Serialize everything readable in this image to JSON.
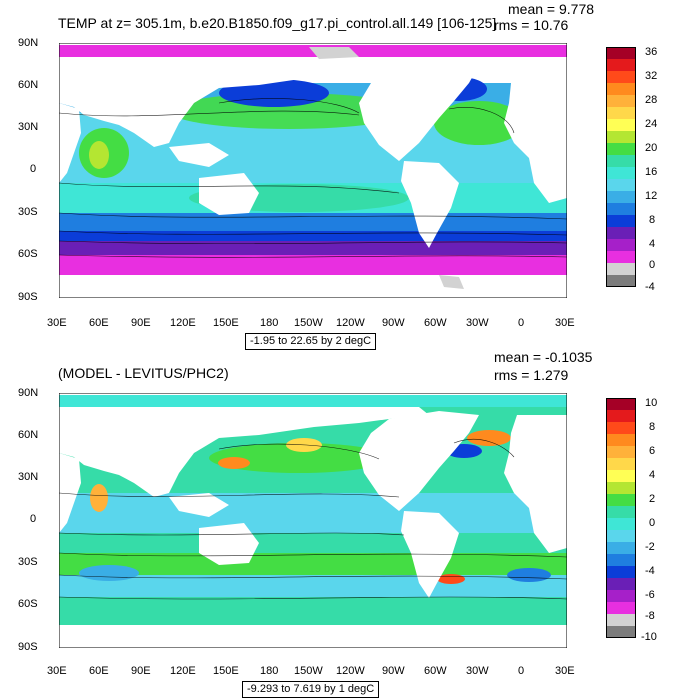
{
  "chart_data": [
    {
      "type": "heatmap",
      "title": "TEMP at z= 305.1m, b.e20.B1850.f09_g17.pi_control.all.149 [106-125]",
      "stats": {
        "mean": "mean = 9.778",
        "rms": "rms = 10.76"
      },
      "note": "-1.95 to 22.65 by 2 degC",
      "x_ticks": [
        "30E",
        "60E",
        "90E",
        "120E",
        "150E",
        "180",
        "150W",
        "120W",
        "90W",
        "60W",
        "30W",
        "0",
        "30E"
      ],
      "y_ticks": [
        "90N",
        "60N",
        "30N",
        "0",
        "30S",
        "60S",
        "90S"
      ],
      "colorbar": {
        "labels": [
          "36",
          "32",
          "28",
          "24",
          "20",
          "16",
          "12",
          "8",
          "4",
          "0",
          "-4"
        ],
        "colors": [
          "#a50026",
          "#e41a1c",
          "#ff4a1a",
          "#ff8a1e",
          "#ffb13a",
          "#ffd84a",
          "#ffff55",
          "#b4e632",
          "#44dd44",
          "#36dca8",
          "#3fe6d6",
          "#5ad6ec",
          "#3aaee6",
          "#1f7ee0",
          "#0b3dd8",
          "#6a1fb6",
          "#a620c9",
          "#e82fe0",
          "#d2d2d2",
          "#7c7c7c"
        ]
      }
    },
    {
      "type": "heatmap",
      "title": "(MODEL - LEVITUS/PHC2)",
      "stats": {
        "mean": "mean = -0.1035",
        "rms": "rms = 1.279"
      },
      "note": "-9.293 to 7.619 by 1 degC",
      "x_ticks": [
        "30E",
        "60E",
        "90E",
        "120E",
        "150E",
        "180",
        "150W",
        "120W",
        "90W",
        "60W",
        "30W",
        "0",
        "30E"
      ],
      "y_ticks": [
        "90N",
        "60N",
        "30N",
        "0",
        "30S",
        "60S",
        "90S"
      ],
      "colorbar": {
        "labels": [
          "10",
          "8",
          "6",
          "4",
          "2",
          "0",
          "-2",
          "-4",
          "-6",
          "-8",
          "-10"
        ],
        "colors": [
          "#a50026",
          "#e41a1c",
          "#ff4a1a",
          "#ff8a1e",
          "#ffb13a",
          "#ffd84a",
          "#ffff55",
          "#b4e632",
          "#44dd44",
          "#36dca8",
          "#3fe6d6",
          "#5ad6ec",
          "#3aaee6",
          "#1f7ee0",
          "#0b3dd8",
          "#6a1fb6",
          "#a620c9",
          "#e82fe0",
          "#d2d2d2",
          "#7c7c7c"
        ]
      }
    }
  ]
}
